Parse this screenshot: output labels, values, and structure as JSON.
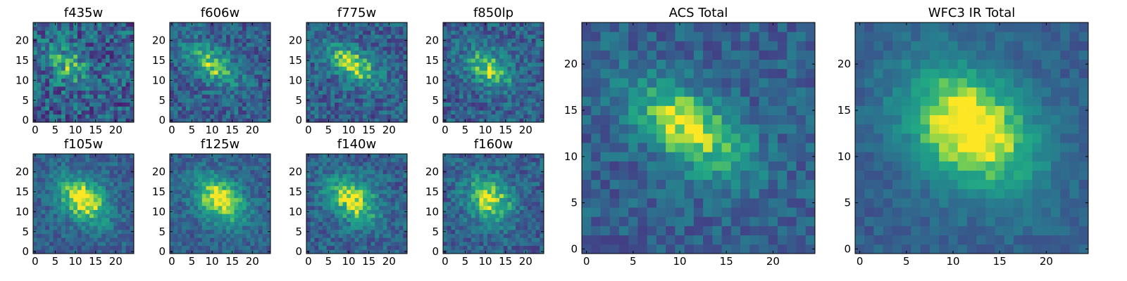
{
  "chart_data": [
    {
      "type": "heatmap",
      "title": "f435w",
      "x_ticks": [
        "0",
        "5",
        "10",
        "15",
        "20"
      ],
      "y_ticks": [
        "0",
        "5",
        "10",
        "15",
        "20"
      ],
      "xlim": [
        0,
        24
      ],
      "ylim": [
        0,
        24
      ],
      "grid": false,
      "colormap": "viridis",
      "peak": [
        8,
        14
      ],
      "spread": [
        4,
        3
      ],
      "angle": -35,
      "noise": 0.55,
      "amp": 0.35,
      "seed": 11
    },
    {
      "type": "heatmap",
      "title": "f606w",
      "x_ticks": [
        "0",
        "5",
        "10",
        "15",
        "20"
      ],
      "y_ticks": [
        "0",
        "5",
        "10",
        "15",
        "20"
      ],
      "xlim": [
        0,
        24
      ],
      "ylim": [
        0,
        24
      ],
      "grid": false,
      "colormap": "viridis",
      "peak": [
        10,
        14
      ],
      "spread": [
        5,
        2.6
      ],
      "angle": -35,
      "noise": 0.4,
      "amp": 0.5,
      "seed": 23
    },
    {
      "type": "heatmap",
      "title": "f775w",
      "x_ticks": [
        "0",
        "5",
        "10",
        "15",
        "20"
      ],
      "y_ticks": [
        "0",
        "5",
        "10",
        "15",
        "20"
      ],
      "xlim": [
        0,
        24
      ],
      "ylim": [
        0,
        24
      ],
      "grid": false,
      "colormap": "viridis",
      "peak": [
        11,
        14
      ],
      "spread": [
        5,
        2.5
      ],
      "angle": -35,
      "noise": 0.4,
      "amp": 0.55,
      "seed": 37
    },
    {
      "type": "heatmap",
      "title": "f850lp",
      "x_ticks": [
        "0",
        "5",
        "10",
        "15",
        "20"
      ],
      "y_ticks": [
        "0",
        "5",
        "10",
        "15",
        "20"
      ],
      "xlim": [
        0,
        24
      ],
      "ylim": [
        0,
        24
      ],
      "grid": false,
      "colormap": "viridis",
      "peak": [
        11,
        13
      ],
      "spread": [
        4.5,
        2.8
      ],
      "angle": -35,
      "noise": 0.4,
      "amp": 0.5,
      "seed": 41
    },
    {
      "type": "heatmap",
      "title": "f105w",
      "x_ticks": [
        "0",
        "5",
        "10",
        "15",
        "20"
      ],
      "y_ticks": [
        "0",
        "5",
        "10",
        "15",
        "20"
      ],
      "xlim": [
        0,
        24
      ],
      "ylim": [
        0,
        24
      ],
      "grid": false,
      "colormap": "viridis",
      "peak": [
        12,
        13
      ],
      "spread": [
        5,
        3.5
      ],
      "angle": -40,
      "noise": 0.3,
      "amp": 0.65,
      "seed": 53
    },
    {
      "type": "heatmap",
      "title": "f125w",
      "x_ticks": [
        "0",
        "5",
        "10",
        "15",
        "20"
      ],
      "y_ticks": [
        "0",
        "5",
        "10",
        "15",
        "20"
      ],
      "xlim": [
        0,
        24
      ],
      "ylim": [
        0,
        24
      ],
      "grid": false,
      "colormap": "viridis",
      "peak": [
        12,
        13
      ],
      "spread": [
        5,
        3.5
      ],
      "angle": -40,
      "noise": 0.3,
      "amp": 0.65,
      "seed": 61
    },
    {
      "type": "heatmap",
      "title": "f140w",
      "x_ticks": [
        "0",
        "5",
        "10",
        "15",
        "20"
      ],
      "y_ticks": [
        "0",
        "5",
        "10",
        "15",
        "20"
      ],
      "xlim": [
        0,
        24
      ],
      "ylim": [
        0,
        24
      ],
      "grid": false,
      "colormap": "viridis",
      "peak": [
        11,
        13
      ],
      "spread": [
        5,
        3.5
      ],
      "angle": -40,
      "noise": 0.35,
      "amp": 0.6,
      "seed": 71
    },
    {
      "type": "heatmap",
      "title": "f160w",
      "x_ticks": [
        "0",
        "5",
        "10",
        "15",
        "20"
      ],
      "y_ticks": [
        "0",
        "5",
        "10",
        "15",
        "20"
      ],
      "xlim": [
        0,
        24
      ],
      "ylim": [
        0,
        24
      ],
      "grid": false,
      "colormap": "viridis",
      "peak": [
        11,
        13
      ],
      "spread": [
        4.5,
        3.5
      ],
      "angle": -50,
      "noise": 0.35,
      "amp": 0.6,
      "seed": 83
    },
    {
      "type": "heatmap",
      "title": "ACS Total",
      "x_ticks": [
        "0",
        "5",
        "10",
        "15",
        "20"
      ],
      "y_ticks": [
        "0",
        "5",
        "10",
        "15",
        "20"
      ],
      "xlim": [
        0,
        24
      ],
      "ylim": [
        0,
        24
      ],
      "grid": false,
      "colormap": "viridis",
      "peak": [
        11,
        13
      ],
      "spread": [
        5,
        2.6
      ],
      "angle": -35,
      "noise": 0.3,
      "amp": 0.6,
      "seed": 97
    },
    {
      "type": "heatmap",
      "title": "WFC3 IR Total",
      "x_ticks": [
        "0",
        "5",
        "10",
        "15",
        "20"
      ],
      "y_ticks": [
        "0",
        "5",
        "10",
        "15",
        "20"
      ],
      "xlim": [
        0,
        24
      ],
      "ylim": [
        0,
        24
      ],
      "grid": false,
      "colormap": "viridis",
      "peak": [
        12,
        13
      ],
      "spread": [
        5.5,
        4
      ],
      "angle": -40,
      "noise": 0.18,
      "amp": 0.72,
      "seed": 101
    }
  ]
}
